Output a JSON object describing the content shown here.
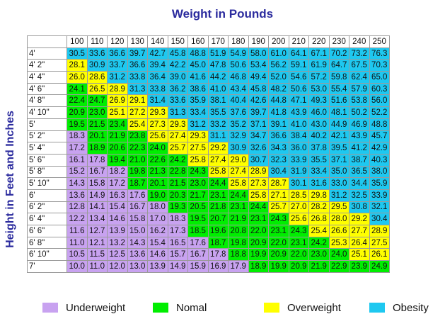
{
  "chart_data": {
    "type": "table",
    "title": "Weight in Pounds",
    "ylabel": "Height in Feet and Inches",
    "weights": [
      "100",
      "110",
      "120",
      "130",
      "140",
      "150",
      "160",
      "170",
      "180",
      "190",
      "200",
      "210",
      "220",
      "230",
      "240",
      "250"
    ],
    "heights": [
      "4'",
      "4' 2\"",
      "4' 4\"",
      "4' 6\"",
      "4' 8\"",
      "4' 10\"",
      "5'",
      "5' 2\"",
      "5' 4\"",
      "5' 6\"",
      "5' 8\"",
      "5' 10\"",
      "6'",
      "6' 2\"",
      "6' 4\"",
      "6' 6\"",
      "6' 8\"",
      "6' 10\"",
      "7'"
    ],
    "rows": [
      [
        "30.5",
        "33.6",
        "36.6",
        "39.7",
        "42.7",
        "45.8",
        "48.8",
        "51.9",
        "54.9",
        "58.0",
        "61.0",
        "64.1",
        "67.1",
        "70.2",
        "73.2",
        "76.3"
      ],
      [
        "28.1",
        "30.9",
        "33.7",
        "36.6",
        "39.4",
        "42.2",
        "45.0",
        "47.8",
        "50.6",
        "53.4",
        "56.2",
        "59.1",
        "61.9",
        "64.7",
        "67.5",
        "70.3"
      ],
      [
        "26.0",
        "28.6",
        "31.2",
        "33.8",
        "36.4",
        "39.0",
        "41.6",
        "44.2",
        "46.8",
        "49.4",
        "52.0",
        "54.6",
        "57.2",
        "59.8",
        "62.4",
        "65.0"
      ],
      [
        "24.1",
        "26.5",
        "28.9",
        "31.3",
        "33.8",
        "36.2",
        "38.6",
        "41.0",
        "43.4",
        "45.8",
        "48.2",
        "50.6",
        "53.0",
        "55.4",
        "57.9",
        "60.3"
      ],
      [
        "22.4",
        "24.7",
        "26.9",
        "29.1",
        "31.4",
        "33.6",
        "35.9",
        "38.1",
        "40.4",
        "42.6",
        "44.8",
        "47.1",
        "49.3",
        "51.6",
        "53.8",
        "56.0"
      ],
      [
        "20.9",
        "23.0",
        "25.1",
        "27.2",
        "29.3",
        "31.3",
        "33.4",
        "35.5",
        "37.6",
        "39.7",
        "41.8",
        "43.9",
        "46.0",
        "48.1",
        "50.2",
        "52.2"
      ],
      [
        "19.5",
        "21.5",
        "23.4",
        "25.4",
        "27.3",
        "29.3",
        "31.2",
        "33.2",
        "35.2",
        "37.1",
        "39.1",
        "41.0",
        "43.0",
        "44.9",
        "46.9",
        "48.8"
      ],
      [
        "18.3",
        "20.1",
        "21.9",
        "23.8",
        "25.6",
        "27.4",
        "29.3",
        "31.1",
        "32.9",
        "34.7",
        "36.6",
        "38.4",
        "40.2",
        "42.1",
        "43.9",
        "45.7"
      ],
      [
        "17.2",
        "18.9",
        "20.6",
        "22.3",
        "24.0",
        "25.7",
        "27.5",
        "29.2",
        "30.9",
        "32.6",
        "34.3",
        "36.0",
        "37.8",
        "39.5",
        "41.2",
        "42.9"
      ],
      [
        "16.1",
        "17.8",
        "19.4",
        "21.0",
        "22.6",
        "24.2",
        "25.8",
        "27.4",
        "29.0",
        "30.7",
        "32.3",
        "33.9",
        "35.5",
        "37.1",
        "38.7",
        "40.3"
      ],
      [
        "15.2",
        "16.7",
        "18.2",
        "19.8",
        "21.3",
        "22.8",
        "24.3",
        "25.8",
        "27.4",
        "28.9",
        "30.4",
        "31.9",
        "33.4",
        "35.0",
        "36.5",
        "38.0"
      ],
      [
        "14.3",
        "15.8",
        "17.2",
        "18.7",
        "20.1",
        "21.5",
        "23.0",
        "24.4",
        "25.8",
        "27.3",
        "28.7",
        "30.1",
        "31.6",
        "33.0",
        "34.4",
        "35.9"
      ],
      [
        "13.6",
        "14.9",
        "16.3",
        "17.6",
        "19.0",
        "20.3",
        "21.7",
        "23.1",
        "24.4",
        "25.8",
        "27.1",
        "28.5",
        "29.8",
        "31.2",
        "32.5",
        "33.9"
      ],
      [
        "12.8",
        "14.1",
        "15.4",
        "16.7",
        "18.0",
        "19.3",
        "20.5",
        "21.8",
        "23.1",
        "24.4",
        "25.7",
        "27.0",
        "28.2",
        "29.5",
        "30.8",
        "32.1"
      ],
      [
        "12.2",
        "13.4",
        "14.6",
        "15.8",
        "17.0",
        "18.3",
        "19.5",
        "20.7",
        "21.9",
        "23.1",
        "24.3",
        "25.6",
        "26.8",
        "28.0",
        "29.2",
        "30.4"
      ],
      [
        "11.6",
        "12.7",
        "13.9",
        "15.0",
        "16.2",
        "17.3",
        "18.5",
        "19.6",
        "20.8",
        "22.0",
        "23.1",
        "24.3",
        "25.4",
        "26.6",
        "27.7",
        "28.9"
      ],
      [
        "11.0",
        "12.1",
        "13.2",
        "14.3",
        "15.4",
        "16.5",
        "17.6",
        "18.7",
        "19.8",
        "20.9",
        "22.0",
        "23.1",
        "24.2",
        "25.3",
        "26.4",
        "27.5"
      ],
      [
        "10.5",
        "11.5",
        "12.5",
        "13.6",
        "14.6",
        "15.7",
        "16.7",
        "17.8",
        "18.8",
        "19.9",
        "20.9",
        "22.0",
        "23.0",
        "24.0",
        "25.1",
        "26.1"
      ],
      [
        "10.0",
        "11.0",
        "12.0",
        "13.0",
        "13.9",
        "14.9",
        "15.9",
        "16.9",
        "17.9",
        "18.9",
        "19.9",
        "20.9",
        "21.9",
        "22.9",
        "23.9",
        "24.9"
      ]
    ],
    "categories": [
      {
        "name": "Underweight",
        "color": "#c8a2f0"
      },
      {
        "name": "Nomal",
        "color": "#00ee00"
      },
      {
        "name": "Overweight",
        "color": "#ffff00"
      },
      {
        "name": "Obesity",
        "color": "#1ec8f0"
      }
    ],
    "legend_position": "bottom"
  }
}
